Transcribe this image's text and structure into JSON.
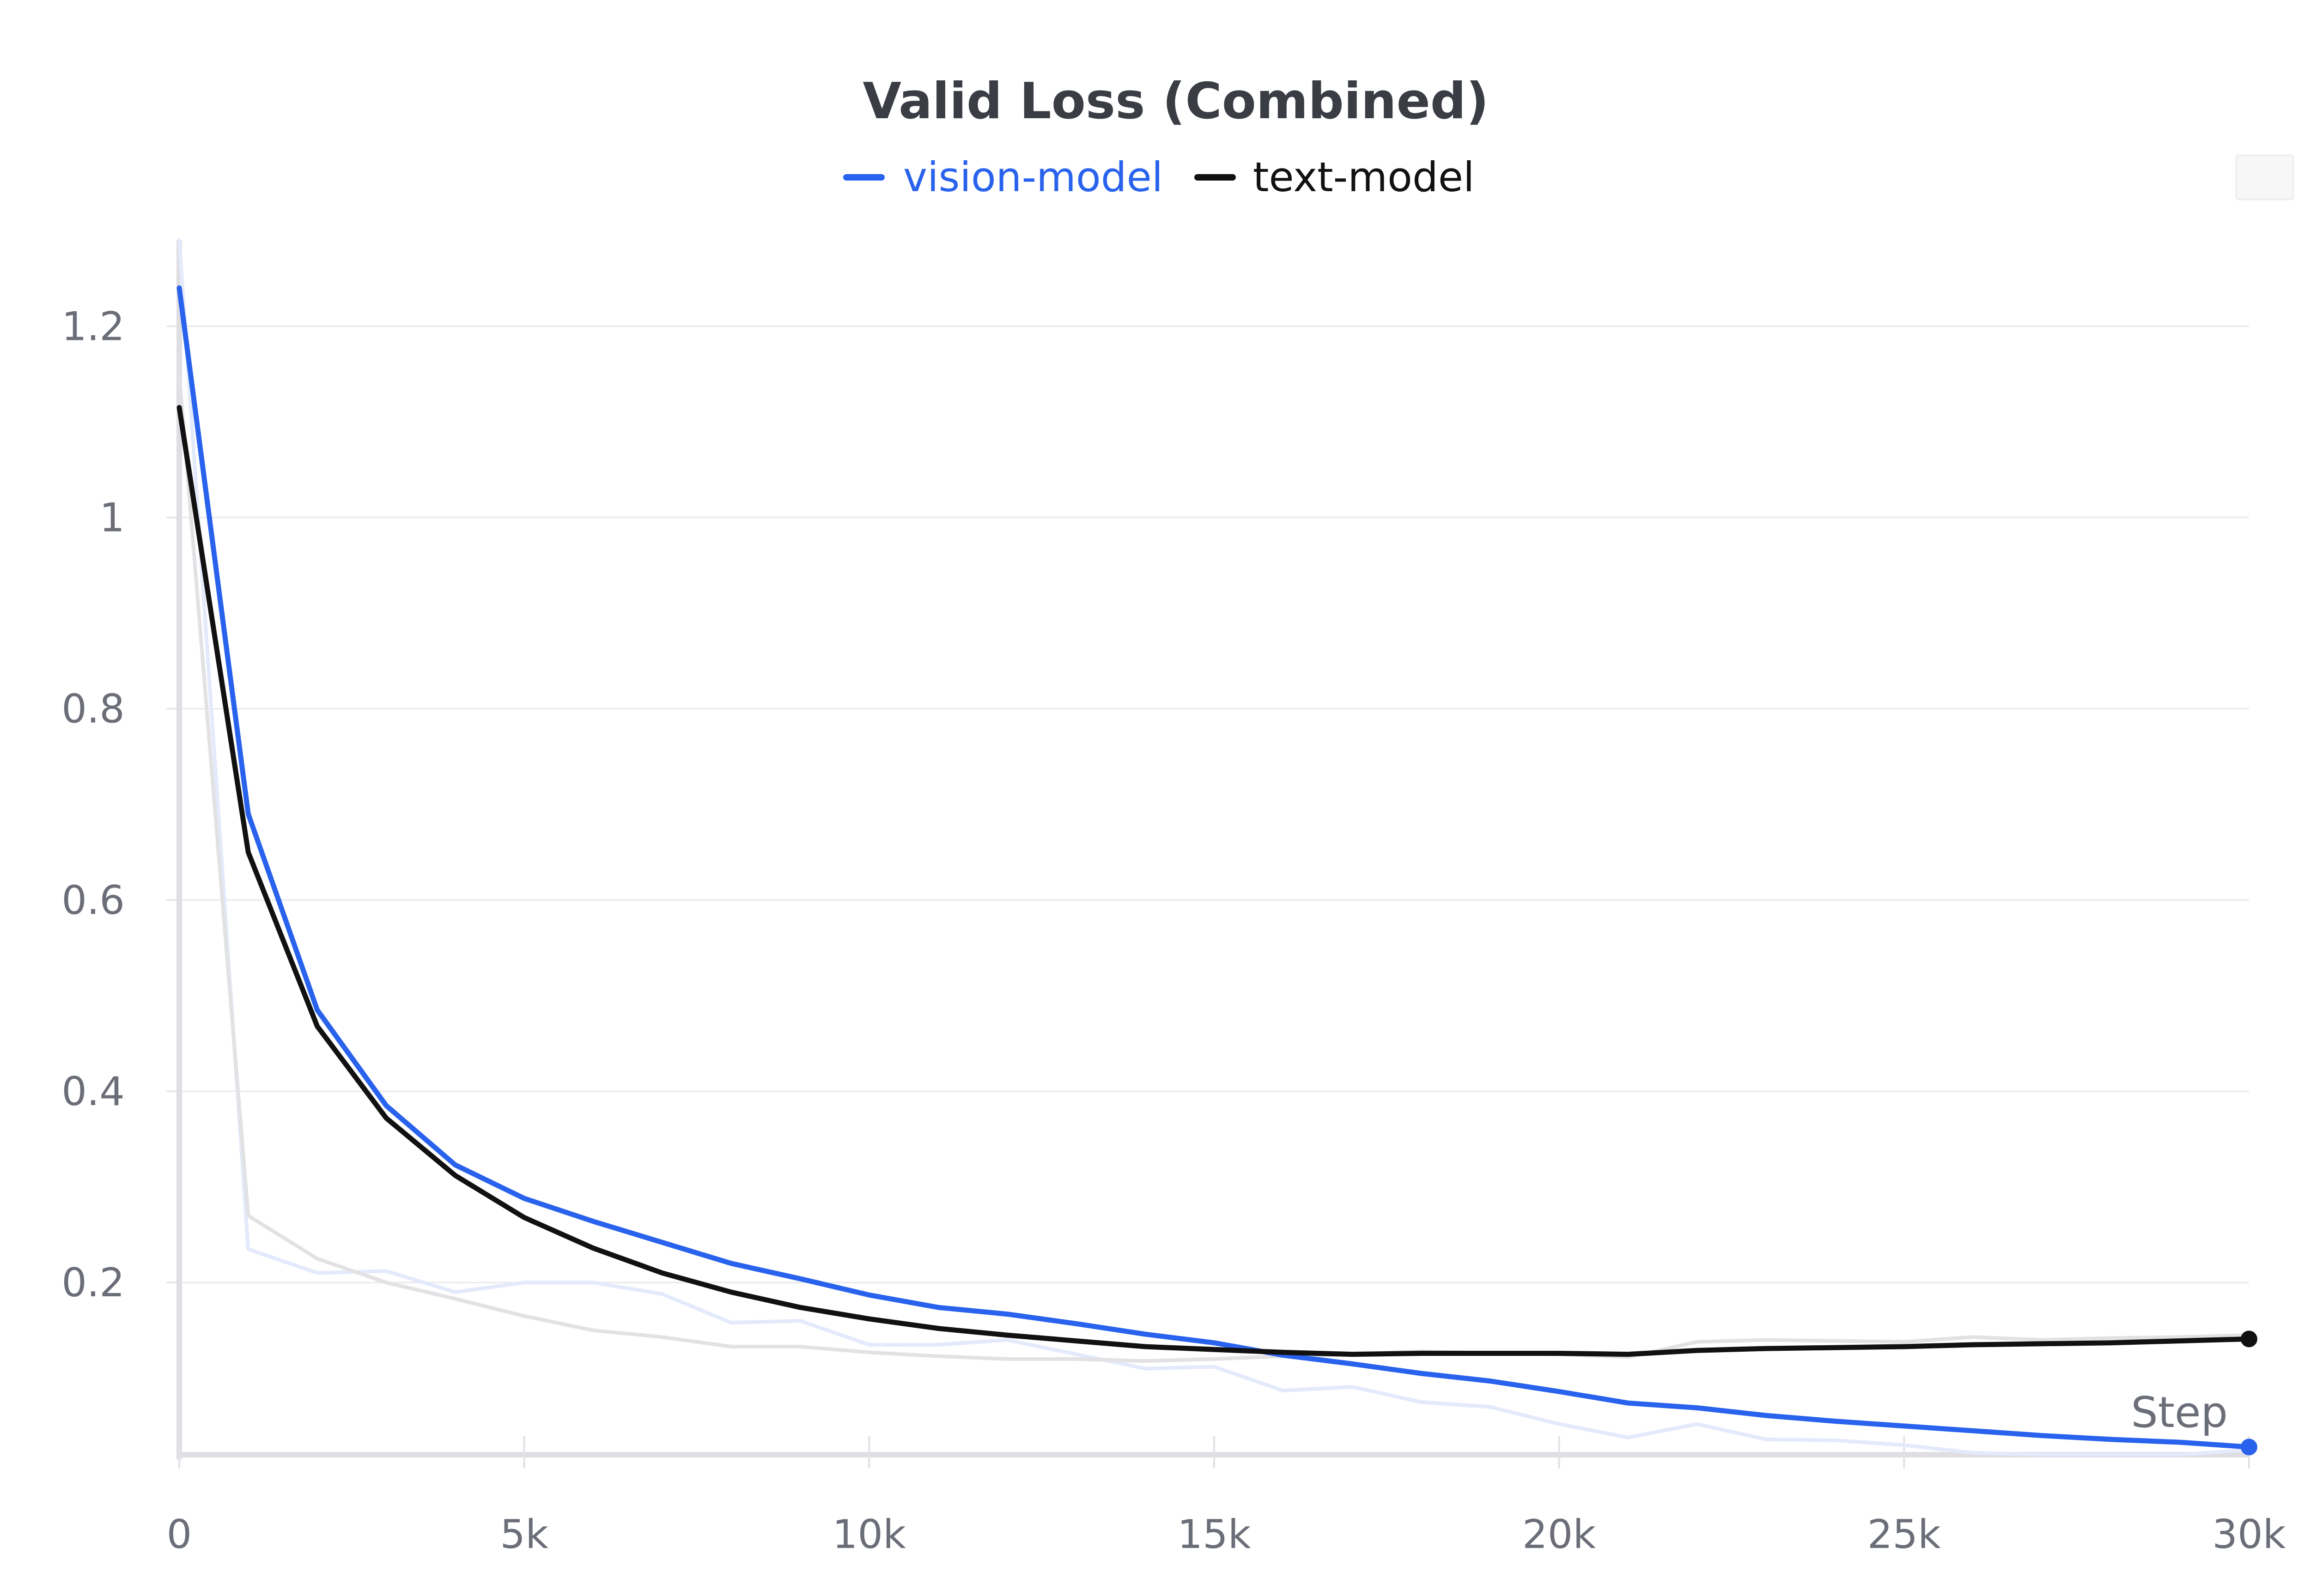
{
  "chart_data": {
    "type": "line",
    "title": "Valid Loss (Combined)",
    "xlabel": "Step",
    "ylabel": "",
    "xlim": [
      0,
      30000
    ],
    "ylim": [
      0.02,
      1.29
    ],
    "x_ticks": [
      {
        "value": 0,
        "label": "0"
      },
      {
        "value": 5000,
        "label": "5k"
      },
      {
        "value": 10000,
        "label": "10k"
      },
      {
        "value": 15000,
        "label": "15k"
      },
      {
        "value": 20000,
        "label": "20k"
      },
      {
        "value": 25000,
        "label": "25k"
      },
      {
        "value": 30000,
        "label": "30k"
      }
    ],
    "y_ticks": [
      {
        "value": 0.2,
        "label": "0.2"
      },
      {
        "value": 0.4,
        "label": "0.4"
      },
      {
        "value": 0.6,
        "label": "0.6"
      },
      {
        "value": 0.8,
        "label": "0.8"
      },
      {
        "value": 1.0,
        "label": "1"
      },
      {
        "value": 1.2,
        "label": "1.2"
      }
    ],
    "grid": true,
    "legend_position": "top-center",
    "x": [
      0,
      1000,
      2000,
      3000,
      4000,
      5000,
      6000,
      7000,
      8000,
      9000,
      10000,
      11000,
      12000,
      13000,
      14000,
      15000,
      16000,
      17000,
      18000,
      19000,
      20000,
      21000,
      22000,
      23000,
      24000,
      25000,
      26000,
      27000,
      28000,
      29000,
      30000
    ],
    "series": [
      {
        "name": "vision-model",
        "color": "#2962ec",
        "values": [
          1.24,
          0.69,
          0.485,
          0.385,
          0.323,
          0.288,
          0.264,
          0.242,
          0.22,
          0.204,
          0.187,
          0.174,
          0.167,
          0.157,
          0.146,
          0.137,
          0.124,
          0.115,
          0.105,
          0.097,
          0.086,
          0.074,
          0.069,
          0.061,
          0.055,
          0.05,
          0.045,
          0.04,
          0.036,
          0.033,
          0.028
        ],
        "raw_values": [
          1.29,
          0.235,
          0.21,
          0.212,
          0.19,
          0.2,
          0.2,
          0.188,
          0.158,
          0.16,
          0.135,
          0.135,
          0.14,
          0.125,
          0.11,
          0.112,
          0.087,
          0.091,
          0.075,
          0.07,
          0.052,
          0.038,
          0.052,
          0.036,
          0.035,
          0.03,
          0.022,
          0.02,
          0.02,
          0.02,
          0.025
        ]
      },
      {
        "name": "text-model",
        "color": "#111111",
        "values": [
          1.115,
          0.65,
          0.468,
          0.372,
          0.312,
          0.268,
          0.236,
          0.21,
          0.19,
          0.174,
          0.162,
          0.152,
          0.145,
          0.139,
          0.133,
          0.13,
          0.127,
          0.125,
          0.126,
          0.126,
          0.126,
          0.125,
          0.129,
          0.131,
          0.132,
          0.133,
          0.135,
          0.136,
          0.137,
          0.139,
          0.141
        ],
        "raw_values": [
          1.15,
          0.27,
          0.225,
          0.2,
          0.183,
          0.165,
          0.15,
          0.143,
          0.133,
          0.133,
          0.127,
          0.123,
          0.12,
          0.12,
          0.118,
          0.12,
          0.123,
          0.125,
          0.128,
          0.126,
          0.125,
          0.122,
          0.138,
          0.14,
          0.139,
          0.138,
          0.143,
          0.14,
          0.142,
          0.143,
          0.145
        ]
      }
    ]
  }
}
